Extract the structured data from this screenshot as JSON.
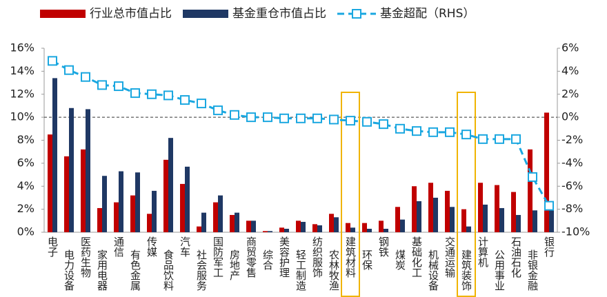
{
  "chart_data": {
    "type": "bar_line",
    "categories": [
      "电子",
      "电力设备",
      "医药生物",
      "家用电器",
      "通信",
      "有色金属",
      "传媒",
      "食品饮料",
      "汽车",
      "社会服务",
      "国防军工",
      "房地产",
      "商贸零售",
      "综合",
      "美容护理",
      "轻工制造",
      "纺织服饰",
      "农林牧渔",
      "建筑材料",
      "环保",
      "钢铁",
      "煤炭",
      "基础化工",
      "机械设备",
      "交通运输",
      "建筑装饰",
      "计算机",
      "公用事业",
      "石油石化",
      "非银金融",
      "银行"
    ],
    "series": [
      {
        "name": "行业总市值占比",
        "type": "bar",
        "color": "#c00000",
        "values": [
          8.5,
          6.6,
          7.2,
          2.1,
          2.6,
          3.2,
          1.6,
          6.3,
          4.2,
          0.5,
          2.6,
          1.5,
          1.0,
          0.1,
          0.4,
          1.0,
          0.7,
          1.6,
          0.8,
          0.8,
          1.0,
          2.2,
          4.0,
          4.3,
          3.6,
          2.0,
          4.3,
          4.1,
          3.5,
          7.2,
          10.4
        ]
      },
      {
        "name": "基金重仓市值占比",
        "type": "bar",
        "color": "#1f3864",
        "values": [
          13.4,
          10.8,
          10.7,
          4.9,
          5.3,
          5.2,
          3.6,
          8.2,
          5.7,
          1.7,
          3.2,
          1.7,
          1.0,
          0.1,
          0.3,
          0.9,
          0.6,
          1.3,
          0.4,
          0.3,
          0.3,
          1.1,
          2.7,
          3.0,
          2.2,
          0.5,
          2.4,
          2.1,
          1.5,
          1.9,
          2.6
        ]
      },
      {
        "name": "基金超配（RHS）",
        "type": "line",
        "axis": "y2",
        "color": "#1aa7e0",
        "values": [
          4.9,
          4.1,
          3.5,
          2.8,
          2.7,
          2.1,
          2.0,
          1.9,
          1.5,
          1.2,
          0.6,
          0.2,
          0.0,
          0.0,
          -0.1,
          -0.1,
          -0.1,
          -0.2,
          -0.3,
          -0.4,
          -0.6,
          -1.0,
          -1.2,
          -1.3,
          -1.3,
          -1.5,
          -1.9,
          -1.9,
          -1.9,
          -5.2,
          -7.7
        ]
      }
    ],
    "ylim": [
      0,
      16
    ],
    "yticks": [
      {
        "value": 0,
        "label": "0%"
      },
      {
        "value": 2,
        "label": "2%"
      },
      {
        "value": 4,
        "label": "4%"
      },
      {
        "value": 6,
        "label": "6%"
      },
      {
        "value": 8,
        "label": "8%"
      },
      {
        "value": 10,
        "label": "10%"
      },
      {
        "value": 12,
        "label": "12%"
      },
      {
        "value": 14,
        "label": "14%"
      },
      {
        "value": 16,
        "label": "16%"
      }
    ],
    "y2lim": [
      -10,
      6
    ],
    "y2ticks": [
      {
        "value": -10,
        "label": "-10%"
      },
      {
        "value": -8,
        "label": "-8%"
      },
      {
        "value": -6,
        "label": "-6%"
      },
      {
        "value": -4,
        "label": "-4%"
      },
      {
        "value": -2,
        "label": "-2%"
      },
      {
        "value": 0,
        "label": "0%"
      },
      {
        "value": 2,
        "label": "2%"
      },
      {
        "value": 4,
        "label": "4%"
      },
      {
        "value": 6,
        "label": "6%"
      }
    ],
    "reference_line_y2": 0,
    "highlight": [
      18,
      25
    ],
    "highlight_color": "#f0b400",
    "legend": "top"
  }
}
